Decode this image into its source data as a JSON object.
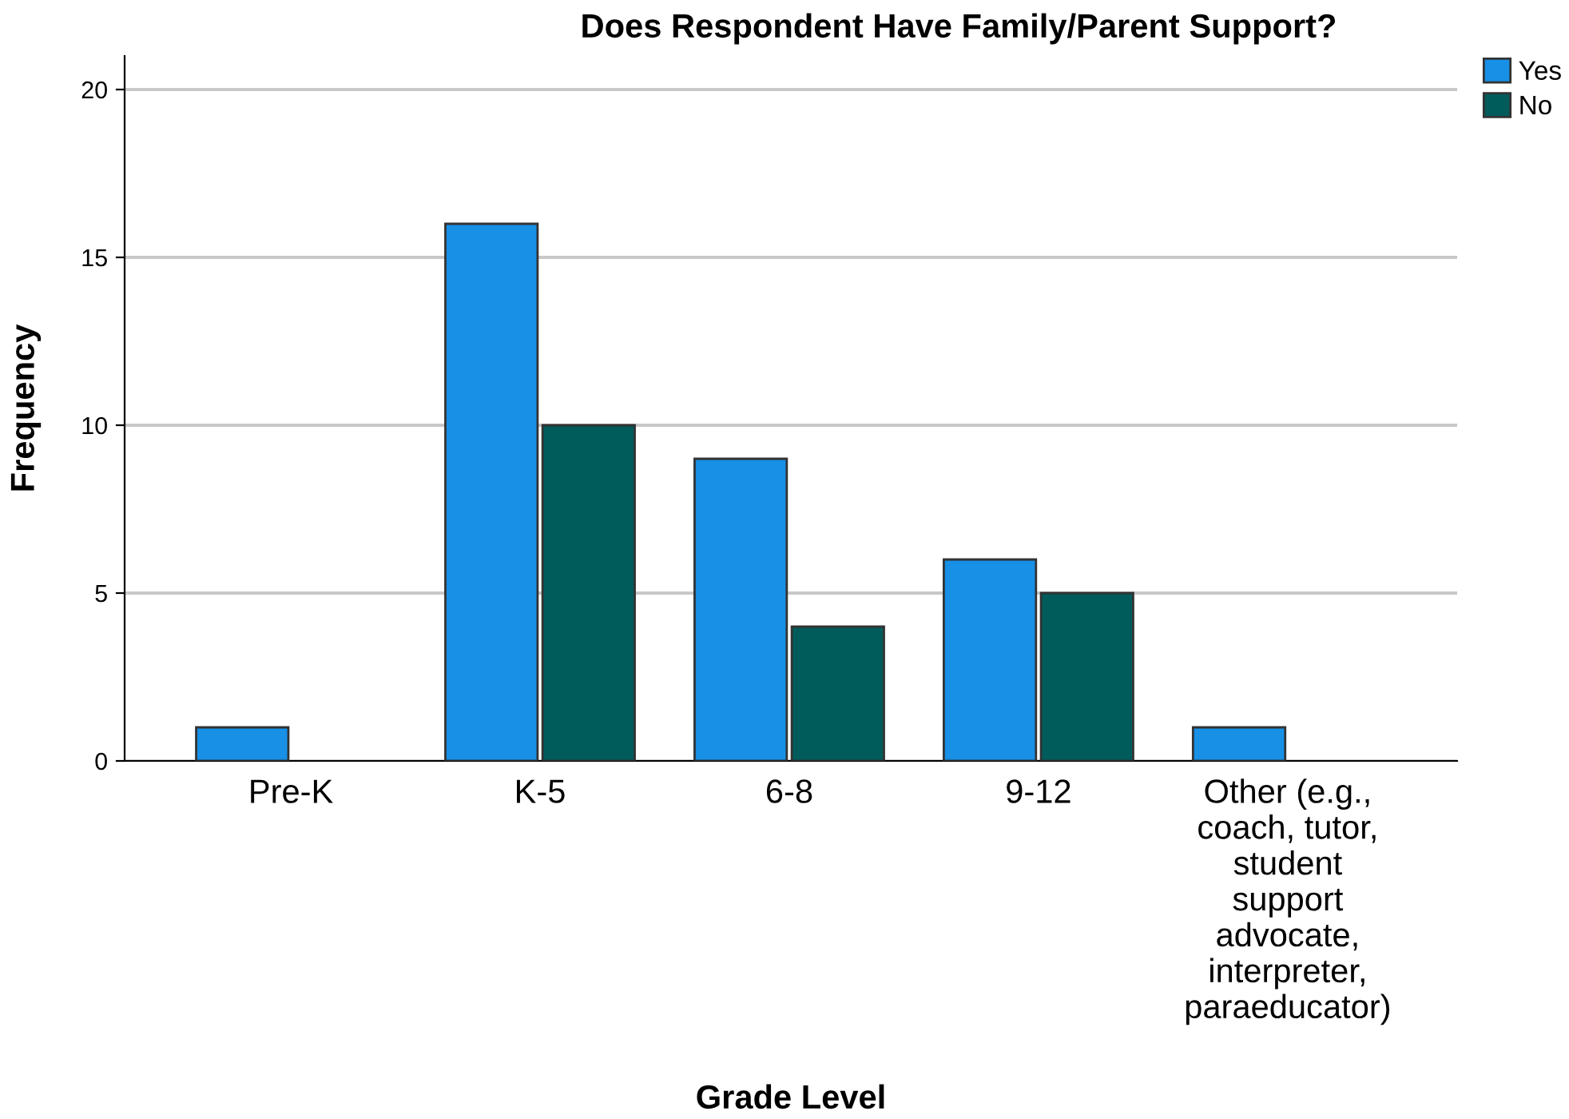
{
  "chart_data": {
    "type": "bar",
    "title": "Does Respondent Have Family/Parent Support?",
    "xlabel": "Grade Level",
    "ylabel": "Frequency",
    "categories": [
      "Pre-K",
      "K-5",
      "6-8",
      "9-12",
      "Other (e.g.,\ncoach, tutor,\nstudent\nsupport\nadvocate,\ninterpreter,\nparaeducator)"
    ],
    "series": [
      {
        "name": "Yes",
        "color": "#1790e6",
        "values": [
          1,
          16,
          9,
          6,
          1
        ]
      },
      {
        "name": "No",
        "color": "#005b5b",
        "values": [
          null,
          10,
          4,
          5,
          null
        ]
      }
    ],
    "ylim": [
      0,
      21
    ],
    "yticks": [
      0,
      5,
      10,
      15,
      20
    ],
    "grid": "y",
    "legend": "top right"
  }
}
